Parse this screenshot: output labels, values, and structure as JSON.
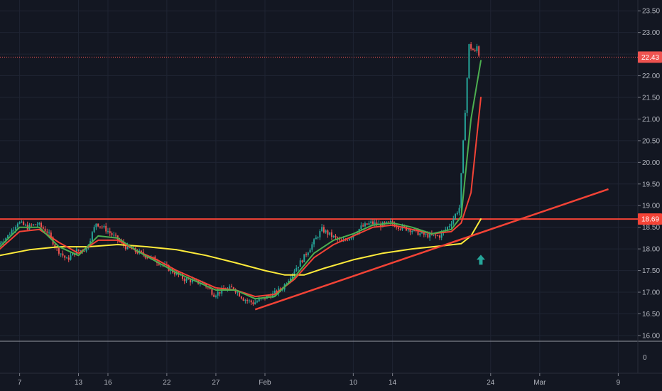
{
  "chart_data": {
    "type": "line",
    "subtype": "candlestick",
    "title": "",
    "y_axis": {
      "side": "right",
      "range": [
        15.9,
        23.75
      ],
      "ticks": [
        "23.50",
        "23.00",
        "22.50",
        "22.00",
        "21.50",
        "21.00",
        "20.50",
        "20.00",
        "19.50",
        "19.00",
        "18.50",
        "18.00",
        "17.50",
        "17.00",
        "16.50",
        "16.00"
      ],
      "tick_values": [
        23.5,
        23.0,
        22.5,
        22.0,
        21.5,
        21.0,
        20.5,
        20.0,
        19.5,
        19.0,
        18.5,
        18.0,
        17.5,
        17.0,
        16.5,
        16.0
      ]
    },
    "lower_pane": {
      "ticks": [
        "0"
      ],
      "tick_values": [
        0
      ]
    },
    "x_axis": {
      "range": [
        "Jan 5",
        "Mar 11"
      ],
      "ticks": [
        {
          "label": "7",
          "date": "Jan 7"
        },
        {
          "label": "13",
          "date": "Jan 13"
        },
        {
          "label": "16",
          "date": "Jan 16"
        },
        {
          "label": "22",
          "date": "Jan 22"
        },
        {
          "label": "27",
          "date": "Jan 27"
        },
        {
          "label": "Feb",
          "date": "Feb 1"
        },
        {
          "label": "10",
          "date": "Feb 10"
        },
        {
          "label": "14",
          "date": "Feb 14"
        },
        {
          "label": "24",
          "date": "Feb 24"
        },
        {
          "label": "Mar",
          "date": "Mar 1"
        },
        {
          "label": "9",
          "date": "Mar 9"
        }
      ]
    },
    "grid": true,
    "price_series": {
      "name": "",
      "color_up": "#26a69a",
      "color_down": "#ef5350",
      "points": [
        [
          "Jan 5",
          18.1
        ],
        [
          "Jan 6",
          18.3
        ],
        [
          "Jan 7",
          18.62
        ],
        [
          "Jan 8",
          18.5
        ],
        [
          "Jan 9",
          18.58
        ],
        [
          "Jan 10",
          18.4
        ],
        [
          "Jan 11",
          18.0
        ],
        [
          "Jan 12",
          17.75
        ],
        [
          "Jan 13",
          17.95
        ],
        [
          "Jan 14",
          18.0
        ],
        [
          "Jan 15",
          18.6
        ],
        [
          "Jan 16",
          18.45
        ],
        [
          "Jan 17",
          18.25
        ],
        [
          "Jan 18",
          18.05
        ],
        [
          "Jan 19",
          17.95
        ],
        [
          "Jan 20",
          17.85
        ],
        [
          "Jan 21",
          17.75
        ],
        [
          "Jan 22",
          17.6
        ],
        [
          "Jan 23",
          17.45
        ],
        [
          "Jan 24",
          17.3
        ],
        [
          "Jan 25",
          17.25
        ],
        [
          "Jan 26",
          17.2
        ],
        [
          "Jan 27",
          16.95
        ],
        [
          "Jan 28",
          17.05
        ],
        [
          "Jan 29",
          17.1
        ],
        [
          "Jan 30",
          16.85
        ],
        [
          "Jan 31",
          16.75
        ],
        [
          "Feb 1",
          16.85
        ],
        [
          "Feb 2",
          16.95
        ],
        [
          "Feb 3",
          17.1
        ],
        [
          "Feb 4",
          17.45
        ],
        [
          "Feb 5",
          17.75
        ],
        [
          "Feb 6",
          18.1
        ],
        [
          "Feb 7",
          18.45
        ],
        [
          "Feb 8",
          18.3
        ],
        [
          "Feb 9",
          18.15
        ],
        [
          "Feb 10",
          18.3
        ],
        [
          "Feb 11",
          18.5
        ],
        [
          "Feb 12",
          18.6
        ],
        [
          "Feb 13",
          18.55
        ],
        [
          "Feb 14",
          18.6
        ],
        [
          "Feb 15",
          18.5
        ],
        [
          "Feb 16",
          18.45
        ],
        [
          "Feb 17",
          18.35
        ],
        [
          "Feb 18",
          18.3
        ],
        [
          "Feb 19",
          18.3
        ],
        [
          "Feb 20",
          18.55
        ],
        [
          "Feb 21",
          18.95
        ],
        [
          "Feb 22",
          22.7
        ],
        [
          "Feb 23",
          22.43
        ]
      ]
    },
    "moving_averages": [
      {
        "name": "",
        "color": "#ffeb3b",
        "points": [
          [
            "Jan 5",
            17.85
          ],
          [
            "Jan 8",
            17.98
          ],
          [
            "Jan 11",
            18.05
          ],
          [
            "Jan 14",
            18.05
          ],
          [
            "Jan 17",
            18.1
          ],
          [
            "Jan 20",
            18.05
          ],
          [
            "Jan 23",
            17.98
          ],
          [
            "Jan 26",
            17.85
          ],
          [
            "Jan 29",
            17.68
          ],
          [
            "Feb 1",
            17.5
          ],
          [
            "Feb 3",
            17.4
          ],
          [
            "Feb 5",
            17.4
          ],
          [
            "Feb 7",
            17.55
          ],
          [
            "Feb 10",
            17.75
          ],
          [
            "Feb 13",
            17.9
          ],
          [
            "Feb 16",
            18.0
          ],
          [
            "Feb 19",
            18.07
          ],
          [
            "Feb 21",
            18.12
          ],
          [
            "Feb 22",
            18.3
          ],
          [
            "Feb 23",
            18.69
          ]
        ]
      },
      {
        "name": "",
        "color": "#f44336",
        "points": [
          [
            "Jan 5",
            18.0
          ],
          [
            "Jan 7",
            18.4
          ],
          [
            "Jan 9",
            18.45
          ],
          [
            "Jan 11",
            18.15
          ],
          [
            "Jan 13",
            17.9
          ],
          [
            "Jan 15",
            18.2
          ],
          [
            "Jan 17",
            18.2
          ],
          [
            "Jan 19",
            17.95
          ],
          [
            "Jan 21",
            17.75
          ],
          [
            "Jan 23",
            17.5
          ],
          [
            "Jan 25",
            17.3
          ],
          [
            "Jan 27",
            17.1
          ],
          [
            "Jan 29",
            17.05
          ],
          [
            "Jan 31",
            16.9
          ],
          [
            "Feb 2",
            16.95
          ],
          [
            "Feb 4",
            17.3
          ],
          [
            "Feb 6",
            17.8
          ],
          [
            "Feb 8",
            18.1
          ],
          [
            "Feb 10",
            18.3
          ],
          [
            "Feb 12",
            18.5
          ],
          [
            "Feb 14",
            18.55
          ],
          [
            "Feb 16",
            18.45
          ],
          [
            "Feb 18",
            18.35
          ],
          [
            "Feb 20",
            18.4
          ],
          [
            "Feb 21",
            18.6
          ],
          [
            "Feb 22",
            19.3
          ],
          [
            "Feb 23",
            21.5
          ]
        ]
      },
      {
        "name": "",
        "color": "#4caf50",
        "points": [
          [
            "Jan 5",
            18.05
          ],
          [
            "Jan 7",
            18.5
          ],
          [
            "Jan 9",
            18.5
          ],
          [
            "Jan 11",
            18.05
          ],
          [
            "Jan 13",
            17.85
          ],
          [
            "Jan 15",
            18.3
          ],
          [
            "Jan 17",
            18.25
          ],
          [
            "Jan 19",
            17.95
          ],
          [
            "Jan 21",
            17.7
          ],
          [
            "Jan 23",
            17.45
          ],
          [
            "Jan 25",
            17.25
          ],
          [
            "Jan 27",
            17.05
          ],
          [
            "Jan 29",
            17.05
          ],
          [
            "Jan 31",
            16.85
          ],
          [
            "Feb 2",
            16.9
          ],
          [
            "Feb 4",
            17.35
          ],
          [
            "Feb 6",
            17.9
          ],
          [
            "Feb 8",
            18.2
          ],
          [
            "Feb 10",
            18.35
          ],
          [
            "Feb 12",
            18.55
          ],
          [
            "Feb 14",
            18.6
          ],
          [
            "Feb 16",
            18.5
          ],
          [
            "Feb 18",
            18.35
          ],
          [
            "Feb 20",
            18.45
          ],
          [
            "Feb 21",
            18.75
          ],
          [
            "Feb 22",
            21.0
          ],
          [
            "Feb 23",
            22.35
          ]
        ]
      }
    ],
    "drawings": {
      "resistance_line": {
        "value": 18.69,
        "color": "#f44336"
      },
      "trend_line": {
        "from": [
          "Jan 31",
          16.6
        ],
        "to": [
          "Mar 8",
          19.38
        ],
        "color": "#f44336"
      },
      "price_line": {
        "value": 22.43,
        "color": "#ef5350",
        "style": "dotted"
      },
      "arrow": {
        "date": "Feb 23",
        "value": 17.75,
        "direction": "up",
        "color": "#26a69a"
      }
    },
    "price_labels": [
      {
        "text": "22.43",
        "value": 22.43,
        "bg": "#ef5350"
      },
      {
        "text": "18.69",
        "value": 18.69,
        "bg": "#f44336"
      }
    ]
  }
}
